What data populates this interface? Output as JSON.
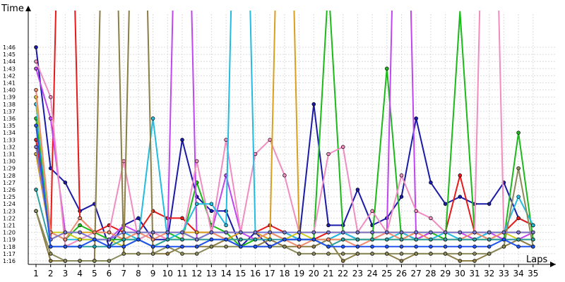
{
  "chart_data": {
    "type": "line",
    "ylabel": "Time",
    "xlabel": "Laps",
    "x": [
      1,
      2,
      3,
      4,
      5,
      6,
      7,
      8,
      9,
      10,
      11,
      12,
      13,
      14,
      15,
      16,
      17,
      18,
      19,
      20,
      21,
      22,
      23,
      24,
      25,
      26,
      27,
      28,
      29,
      30,
      31,
      32,
      33,
      34,
      35
    ],
    "y_ticks": [
      "1:16",
      "1:17",
      "1:18",
      "1:19",
      "1:20",
      "1:21",
      "1:22",
      "1:23",
      "1:24",
      "1:25",
      "1:26",
      "1:27",
      "1:28",
      "1:29",
      "1:30",
      "1:31",
      "1:32",
      "1:33",
      "1:34",
      "1:35",
      "1:36",
      "1:37",
      "1:38",
      "1:39",
      "1:40",
      "1:41",
      "1:42",
      "1:43",
      "1:44",
      "1:45",
      "1:46"
    ],
    "ylim_seconds": [
      75,
      107
    ],
    "y_unit": "seconds (m:ss)",
    "grid": true,
    "series": [
      {
        "color": "#1a1aa8",
        "values": [
          106,
          89,
          87,
          83,
          84,
          78,
          81,
          82,
          79,
          79,
          93,
          85,
          83,
          83,
          78,
          80,
          78,
          79,
          79,
          98,
          81,
          81,
          86,
          81,
          82,
          85,
          96,
          87,
          84,
          85,
          84,
          84,
          87,
          82,
          81
        ]
      },
      {
        "color": "#e81919",
        "values": [
          93,
          79,
          170,
          82,
          80,
          81,
          80,
          80,
          83,
          82,
          82,
          80,
          80,
          80,
          80,
          80,
          81,
          80,
          79,
          79,
          80,
          80,
          80,
          80,
          80,
          80,
          79,
          80,
          80,
          88,
          80,
          80,
          80,
          82,
          81
        ]
      },
      {
        "color": "#1cb81c",
        "values": [
          96,
          80,
          79,
          81,
          80,
          79,
          79,
          79,
          80,
          80,
          79,
          87,
          81,
          80,
          78,
          79,
          80,
          79,
          79,
          79,
          115,
          80,
          79,
          79,
          103,
          79,
          80,
          80,
          79,
          111,
          80,
          79,
          79,
          94,
          79
        ]
      },
      {
        "color": "#c046f0",
        "values": [
          103,
          96,
          80,
          80,
          79,
          79,
          81,
          80,
          80,
          79,
          170,
          79,
          80,
          88,
          80,
          79,
          80,
          79,
          79,
          79,
          79,
          80,
          79,
          79,
          80,
          170,
          79,
          80,
          80,
          80,
          79,
          80,
          79,
          79,
          80
        ]
      },
      {
        "color": "#f08cc0",
        "values": [
          104,
          99,
          78,
          79,
          80,
          80,
          90,
          79,
          80,
          79,
          79,
          90,
          80,
          93,
          80,
          91,
          93,
          88,
          80,
          80,
          91,
          92,
          80,
          83,
          80,
          88,
          83,
          82,
          80,
          80,
          80,
          170,
          80,
          80,
          80
        ]
      },
      {
        "color": "#22bce0",
        "values": [
          98,
          80,
          79,
          79,
          79,
          79,
          80,
          79,
          96,
          79,
          80,
          84,
          84,
          81,
          170,
          80,
          80,
          80,
          79,
          79,
          79,
          80,
          79,
          79,
          79,
          80,
          79,
          79,
          80,
          79,
          79,
          80,
          80,
          85,
          81
        ]
      },
      {
        "color": "#cccc22",
        "values": [
          99,
          80,
          80,
          79,
          79,
          79,
          78,
          79,
          78,
          79,
          79,
          79,
          79,
          79,
          79,
          79,
          80,
          79,
          80,
          79,
          79,
          79,
          79,
          79,
          79,
          79,
          79,
          79,
          79,
          79,
          79,
          79,
          80,
          79,
          79
        ]
      },
      {
        "color": "#8c7d46",
        "values": [
          83,
          76,
          76,
          76,
          76,
          170,
          77,
          170,
          77,
          77,
          78,
          78,
          78,
          79,
          78,
          78,
          79,
          78,
          78,
          78,
          79,
          76,
          77,
          77,
          77,
          76,
          77,
          77,
          77,
          76,
          76,
          77,
          78,
          79,
          78
        ]
      },
      {
        "color": "#d9a020",
        "values": [
          91,
          79,
          80,
          80,
          80,
          80,
          79,
          80,
          80,
          80,
          80,
          80,
          80,
          79,
          80,
          80,
          79,
          170,
          80,
          80,
          80,
          80,
          80,
          80,
          80,
          80,
          80,
          80,
          80,
          80,
          80,
          80,
          80,
          80,
          80
        ]
      },
      {
        "color": "#f08c70",
        "values": [
          100,
          80,
          79,
          82,
          80,
          80,
          79,
          80,
          79,
          80,
          80,
          79,
          80,
          79,
          79,
          79,
          80,
          79,
          78,
          79,
          79,
          79,
          78,
          79,
          80,
          79,
          80,
          79,
          79,
          79,
          80,
          79,
          80,
          80,
          80
        ]
      },
      {
        "color": "#8a8a5a",
        "values": [
          83,
          77,
          76,
          76,
          76,
          76,
          77,
          77,
          77,
          78,
          77,
          77,
          78,
          78,
          78,
          78,
          78,
          78,
          77,
          77,
          77,
          77,
          77,
          77,
          77,
          77,
          77,
          77,
          77,
          77,
          77,
          77,
          78,
          89,
          78
        ]
      },
      {
        "color": "#30a0a0",
        "values": [
          86,
          78,
          78,
          78,
          78,
          78,
          79,
          79,
          78,
          79,
          79,
          79,
          79,
          79,
          79,
          79,
          79,
          79,
          79,
          79,
          78,
          79,
          79,
          79,
          79,
          79,
          79,
          79,
          79,
          79,
          79,
          79,
          79,
          79,
          79
        ]
      },
      {
        "color": "#7a7ad0",
        "values": [
          92,
          79,
          80,
          80,
          79,
          79,
          80,
          80,
          80,
          80,
          80,
          79,
          80,
          80,
          80,
          80,
          80,
          80,
          80,
          80,
          80,
          80,
          80,
          80,
          80,
          80,
          80,
          80,
          80,
          80,
          80,
          80,
          80,
          80,
          80
        ]
      },
      {
        "color": "#2255ee",
        "values": [
          95,
          78,
          78,
          78,
          79,
          78,
          78,
          79,
          78,
          78,
          78,
          78,
          79,
          79,
          78,
          78,
          78,
          79,
          79,
          79,
          78,
          78,
          78,
          78,
          78,
          78,
          78,
          78,
          78,
          78,
          78,
          78,
          79,
          78,
          78
        ]
      }
    ]
  }
}
